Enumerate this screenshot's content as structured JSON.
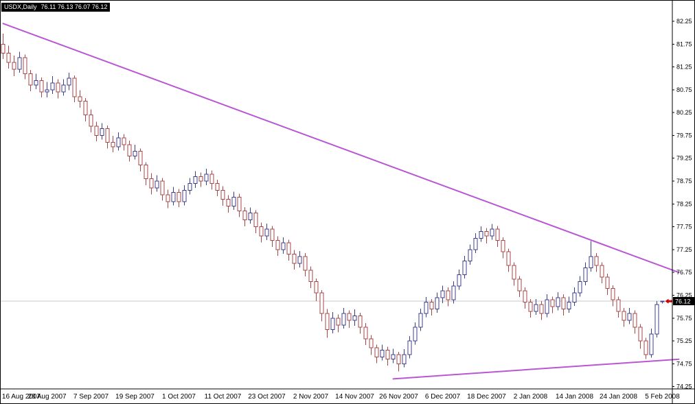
{
  "window": {
    "title_symbol": "USDX,Daily",
    "title_quote": "76.11 76.13 76.07 76.12"
  },
  "colors": {
    "background": "#ffffff",
    "border": "#000000",
    "bull": "#3c3c8f",
    "bear": "#aa4444",
    "body_fill": "#ffffff",
    "trendline": "#ba55d3",
    "current_price_line": "#c8c8c8",
    "axis_text": "#000000",
    "price_marker_bg": "#000000",
    "price_marker_text": "#ffffff",
    "arrow": "#cc0000"
  },
  "chart_data": {
    "type": "candlestick",
    "title": "USDX,Daily",
    "symbol": "USDX",
    "timeframe": "Daily",
    "current_price": "76.12",
    "current_bar": {
      "open": "76.11",
      "high": "76.13",
      "low": "76.07",
      "close": "76.12"
    },
    "y_range": [
      74.2,
      82.7
    ],
    "y_ticks": [
      82.25,
      81.75,
      81.25,
      80.75,
      80.25,
      79.75,
      79.25,
      78.75,
      78.25,
      77.75,
      77.25,
      76.75,
      76.25,
      75.75,
      75.25,
      74.75,
      74.25
    ],
    "x_labels": [
      {
        "label": "16 Aug 2007",
        "i": 0
      },
      {
        "label": "28 Aug 2007",
        "i": 8
      },
      {
        "label": "7 Sep 2007",
        "i": 16
      },
      {
        "label": "19 Sep 2007",
        "i": 24
      },
      {
        "label": "1 Oct 2007",
        "i": 32
      },
      {
        "label": "11 Oct 2007",
        "i": 40
      },
      {
        "label": "23 Oct 2007",
        "i": 48
      },
      {
        "label": "2 Nov 2007",
        "i": 56
      },
      {
        "label": "14 Nov 2007",
        "i": 64
      },
      {
        "label": "26 Nov 2007",
        "i": 72
      },
      {
        "label": "6 Dec 2007",
        "i": 80
      },
      {
        "label": "18 Dec 2007",
        "i": 88
      },
      {
        "label": "2 Jan 2008",
        "i": 96
      },
      {
        "label": "14 Jan 2008",
        "i": 104
      },
      {
        "label": "24 Jan 2008",
        "i": 112
      },
      {
        "label": "5 Feb 2008",
        "i": 120
      }
    ],
    "candles": [
      [
        81.75,
        81.98,
        81.42,
        81.55
      ],
      [
        81.55,
        81.72,
        81.21,
        81.35
      ],
      [
        81.35,
        81.5,
        81.05,
        81.2
      ],
      [
        81.2,
        81.58,
        81.12,
        81.45
      ],
      [
        81.45,
        81.52,
        80.98,
        81.1
      ],
      [
        81.1,
        81.18,
        80.72,
        80.85
      ],
      [
        80.85,
        81.1,
        80.76,
        80.95
      ],
      [
        80.95,
        81.02,
        80.58,
        80.7
      ],
      [
        80.7,
        80.92,
        80.58,
        80.75
      ],
      [
        80.75,
        81.05,
        80.66,
        80.9
      ],
      [
        80.9,
        80.98,
        80.56,
        80.7
      ],
      [
        80.7,
        80.98,
        80.62,
        80.85
      ],
      [
        80.85,
        81.12,
        80.74,
        81.0
      ],
      [
        81.0,
        81.06,
        80.48,
        80.6
      ],
      [
        80.6,
        80.74,
        80.36,
        80.5
      ],
      [
        80.5,
        80.57,
        80.06,
        80.2
      ],
      [
        80.2,
        80.32,
        79.82,
        79.95
      ],
      [
        79.95,
        80.05,
        79.62,
        79.75
      ],
      [
        79.75,
        80.02,
        79.66,
        79.9
      ],
      [
        79.9,
        79.97,
        79.46,
        79.6
      ],
      [
        79.6,
        79.74,
        79.38,
        79.5
      ],
      [
        79.5,
        79.82,
        79.42,
        79.7
      ],
      [
        79.7,
        79.78,
        79.42,
        79.55
      ],
      [
        79.55,
        79.64,
        79.18,
        79.3
      ],
      [
        79.3,
        79.55,
        79.22,
        79.4
      ],
      [
        79.4,
        79.46,
        78.96,
        79.1
      ],
      [
        79.1,
        79.16,
        78.66,
        78.8
      ],
      [
        78.8,
        78.92,
        78.46,
        78.6
      ],
      [
        78.6,
        78.88,
        78.52,
        78.75
      ],
      [
        78.75,
        78.82,
        78.32,
        78.45
      ],
      [
        78.45,
        78.56,
        78.16,
        78.3
      ],
      [
        78.3,
        78.62,
        78.22,
        78.5
      ],
      [
        78.5,
        78.58,
        78.18,
        78.3
      ],
      [
        78.3,
        78.66,
        78.22,
        78.55
      ],
      [
        78.55,
        78.82,
        78.46,
        78.7
      ],
      [
        78.7,
        78.97,
        78.6,
        78.85
      ],
      [
        78.85,
        78.94,
        78.62,
        78.75
      ],
      [
        78.75,
        79.02,
        78.66,
        78.9
      ],
      [
        78.9,
        78.98,
        78.56,
        78.7
      ],
      [
        78.7,
        78.78,
        78.42,
        78.55
      ],
      [
        78.55,
        78.64,
        78.21,
        78.35
      ],
      [
        78.35,
        78.44,
        78.06,
        78.2
      ],
      [
        78.2,
        78.52,
        78.12,
        78.4
      ],
      [
        78.4,
        78.47,
        77.96,
        78.1
      ],
      [
        78.1,
        78.18,
        77.76,
        77.9
      ],
      [
        77.9,
        78.17,
        77.82,
        78.05
      ],
      [
        78.05,
        78.11,
        77.61,
        77.75
      ],
      [
        77.75,
        77.84,
        77.41,
        77.55
      ],
      [
        77.55,
        77.82,
        77.46,
        77.7
      ],
      [
        77.7,
        77.77,
        77.31,
        77.45
      ],
      [
        77.45,
        77.54,
        77.11,
        77.25
      ],
      [
        77.25,
        77.52,
        77.16,
        77.4
      ],
      [
        77.4,
        77.47,
        77.01,
        77.15
      ],
      [
        77.15,
        77.24,
        76.81,
        76.95
      ],
      [
        76.95,
        77.22,
        76.86,
        77.1
      ],
      [
        77.1,
        77.17,
        76.66,
        76.8
      ],
      [
        76.8,
        76.88,
        76.41,
        76.55
      ],
      [
        76.55,
        76.62,
        76.12,
        76.3
      ],
      [
        76.3,
        76.36,
        75.68,
        75.85
      ],
      [
        75.85,
        75.95,
        75.32,
        75.5
      ],
      [
        75.5,
        75.88,
        75.42,
        75.75
      ],
      [
        75.75,
        75.83,
        75.44,
        75.6
      ],
      [
        75.6,
        75.97,
        75.52,
        75.85
      ],
      [
        75.85,
        75.92,
        75.54,
        75.7
      ],
      [
        75.7,
        75.94,
        75.58,
        75.8
      ],
      [
        75.8,
        75.87,
        75.41,
        75.55
      ],
      [
        75.55,
        75.64,
        75.16,
        75.3
      ],
      [
        75.3,
        75.38,
        74.94,
        75.1
      ],
      [
        75.1,
        75.17,
        74.76,
        74.9
      ],
      [
        74.9,
        75.17,
        74.82,
        75.05
      ],
      [
        75.05,
        75.12,
        74.71,
        74.85
      ],
      [
        74.85,
        75.08,
        74.76,
        74.95
      ],
      [
        74.95,
        75.01,
        74.58,
        74.75
      ],
      [
        74.75,
        75.07,
        74.67,
        74.95
      ],
      [
        74.95,
        75.36,
        74.87,
        75.25
      ],
      [
        75.25,
        75.66,
        75.17,
        75.55
      ],
      [
        75.55,
        75.96,
        75.47,
        75.85
      ],
      [
        75.85,
        76.21,
        75.77,
        76.1
      ],
      [
        76.1,
        76.17,
        75.81,
        75.95
      ],
      [
        75.95,
        76.31,
        75.87,
        76.2
      ],
      [
        76.2,
        76.46,
        76.08,
        76.35
      ],
      [
        76.35,
        76.42,
        76.01,
        76.15
      ],
      [
        76.15,
        76.56,
        76.07,
        76.45
      ],
      [
        76.45,
        76.81,
        76.37,
        76.7
      ],
      [
        76.7,
        77.11,
        76.62,
        77.0
      ],
      [
        77.0,
        77.36,
        76.92,
        77.25
      ],
      [
        77.25,
        77.61,
        77.17,
        77.5
      ],
      [
        77.5,
        77.76,
        77.42,
        77.65
      ],
      [
        77.65,
        77.72,
        77.38,
        77.55
      ],
      [
        77.55,
        77.81,
        77.47,
        77.7
      ],
      [
        77.7,
        77.77,
        77.31,
        77.45
      ],
      [
        77.45,
        77.52,
        77.06,
        77.2
      ],
      [
        77.2,
        77.27,
        76.76,
        76.9
      ],
      [
        76.9,
        76.97,
        76.46,
        76.6
      ],
      [
        76.6,
        76.67,
        76.21,
        76.35
      ],
      [
        76.35,
        76.42,
        75.96,
        76.1
      ],
      [
        76.1,
        76.17,
        75.76,
        75.9
      ],
      [
        75.9,
        76.17,
        75.82,
        76.05
      ],
      [
        76.05,
        76.12,
        75.71,
        75.85
      ],
      [
        75.85,
        76.27,
        75.77,
        76.15
      ],
      [
        76.15,
        76.22,
        75.86,
        76.0
      ],
      [
        76.0,
        76.32,
        75.92,
        76.2
      ],
      [
        76.2,
        76.27,
        75.81,
        75.95
      ],
      [
        75.95,
        76.22,
        75.87,
        76.1
      ],
      [
        76.1,
        76.42,
        76.02,
        76.3
      ],
      [
        76.3,
        76.67,
        76.22,
        76.55
      ],
      [
        76.55,
        76.97,
        76.47,
        76.85
      ],
      [
        76.85,
        77.44,
        76.77,
        77.1
      ],
      [
        77.1,
        77.17,
        76.76,
        76.9
      ],
      [
        76.9,
        76.97,
        76.51,
        76.65
      ],
      [
        76.65,
        76.72,
        76.26,
        76.4
      ],
      [
        76.4,
        76.47,
        76.01,
        76.15
      ],
      [
        76.15,
        76.22,
        75.76,
        75.9
      ],
      [
        75.9,
        75.97,
        75.56,
        75.7
      ],
      [
        75.7,
        75.97,
        75.62,
        75.85
      ],
      [
        75.85,
        75.92,
        75.41,
        75.55
      ],
      [
        75.55,
        75.62,
        75.08,
        75.25
      ],
      [
        75.25,
        75.32,
        74.85,
        74.95
      ],
      [
        74.95,
        75.52,
        74.88,
        75.4
      ],
      [
        75.4,
        76.12,
        75.33,
        76.05
      ],
      [
        76.11,
        76.13,
        76.07,
        76.12
      ]
    ],
    "trendlines": [
      {
        "i1": 0,
        "p1": 82.2,
        "i2": 123,
        "p2": 76.75
      },
      {
        "i1": 71,
        "p1": 74.42,
        "i2": 123,
        "p2": 74.85
      }
    ],
    "arrow_marker": {
      "i": 120,
      "price": 76.12
    },
    "legend_position": "none",
    "grid": "off"
  }
}
